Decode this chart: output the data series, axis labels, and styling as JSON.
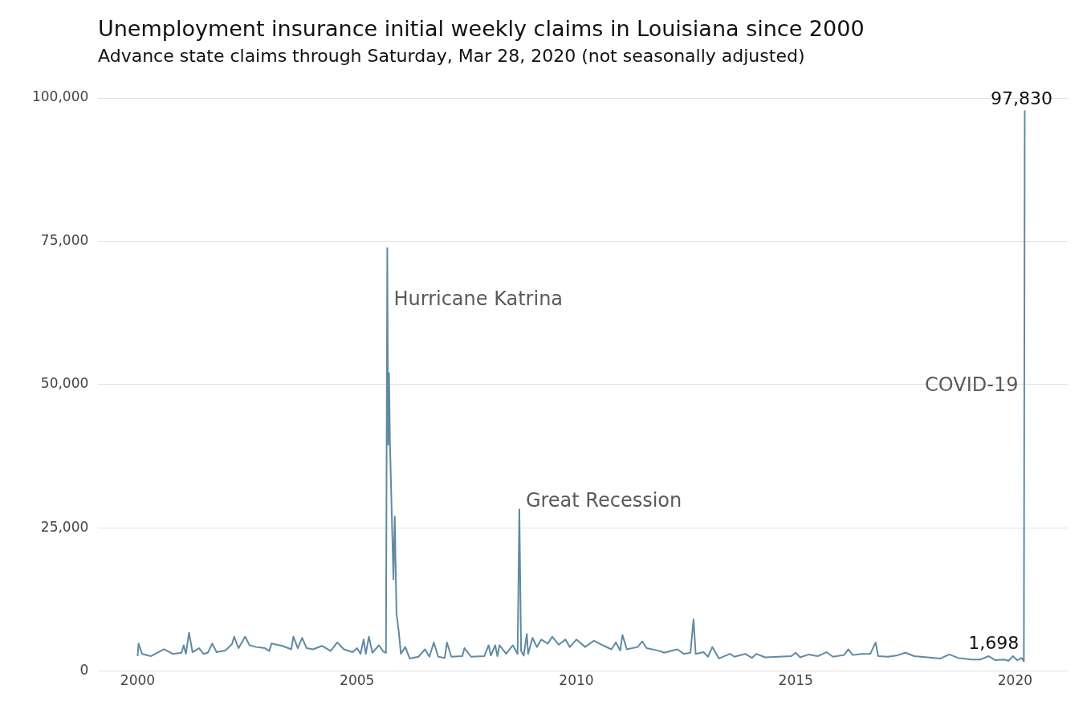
{
  "chart_data": {
    "type": "line",
    "title": "Unemployment insurance initial weekly claims in Louisiana since 2000",
    "subtitle": "Advance state claims through Saturday, Mar 28, 2020 (not seasonally adjusted)",
    "x": [
      2000.0,
      2000.02,
      2000.1,
      2000.3,
      2000.6,
      2000.8,
      2001.0,
      2001.05,
      2001.1,
      2001.17,
      2001.25,
      2001.4,
      2001.5,
      2001.6,
      2001.7,
      2001.8,
      2002.0,
      2002.15,
      2002.2,
      2002.3,
      2002.45,
      2002.55,
      2002.7,
      2002.9,
      2003.0,
      2003.05,
      2003.3,
      2003.5,
      2003.55,
      2003.65,
      2003.75,
      2003.85,
      2004.0,
      2004.2,
      2004.4,
      2004.55,
      2004.7,
      2004.9,
      2005.0,
      2005.08,
      2005.15,
      2005.2,
      2005.27,
      2005.35,
      2005.5,
      2005.6,
      2005.66,
      2005.69,
      2005.71,
      2005.73,
      2005.75,
      2005.8,
      2005.83,
      2005.86,
      2005.9,
      2005.95,
      2006.0,
      2006.1,
      2006.2,
      2006.4,
      2006.55,
      2006.65,
      2006.75,
      2006.85,
      2007.0,
      2007.05,
      2007.15,
      2007.4,
      2007.45,
      2007.6,
      2007.9,
      2008.0,
      2008.05,
      2008.15,
      2008.2,
      2008.25,
      2008.4,
      2008.55,
      2008.66,
      2008.7,
      2008.74,
      2008.8,
      2008.87,
      2008.9,
      2009.0,
      2009.1,
      2009.2,
      2009.35,
      2009.45,
      2009.6,
      2009.75,
      2009.85,
      2010.0,
      2010.2,
      2010.4,
      2010.6,
      2010.8,
      2010.9,
      2011.0,
      2011.05,
      2011.15,
      2011.4,
      2011.5,
      2011.6,
      2011.9,
      2012.0,
      2012.3,
      2012.45,
      2012.6,
      2012.67,
      2012.72,
      2012.9,
      2013.0,
      2013.1,
      2013.25,
      2013.5,
      2013.6,
      2013.85,
      2014.0,
      2014.1,
      2014.3,
      2014.6,
      2014.9,
      2015.0,
      2015.1,
      2015.3,
      2015.5,
      2015.7,
      2015.85,
      2016.1,
      2016.2,
      2016.3,
      2016.5,
      2016.7,
      2016.82,
      2016.88,
      2017.1,
      2017.3,
      2017.5,
      2017.7,
      2018.0,
      2018.3,
      2018.5,
      2018.7,
      2019.0,
      2019.2,
      2019.4,
      2019.55,
      2019.75,
      2019.85,
      2019.95,
      2020.05,
      2020.15,
      2020.2,
      2020.22
    ],
    "series": [
      {
        "color": "#5f8aa3",
        "values": [
          2600,
          4800,
          3000,
          2600,
          3800,
          3000,
          3200,
          4500,
          3000,
          6700,
          3300,
          4000,
          3000,
          3200,
          4800,
          3300,
          3600,
          4700,
          6000,
          4000,
          6000,
          4500,
          4200,
          4000,
          3500,
          4800,
          4400,
          3800,
          6000,
          4000,
          5800,
          4000,
          3800,
          4400,
          3500,
          5000,
          3800,
          3300,
          4000,
          3000,
          5500,
          3000,
          6000,
          3200,
          4500,
          3400,
          3200,
          73800,
          39500,
          52000,
          40000,
          25000,
          16000,
          27000,
          10000,
          7000,
          3000,
          4200,
          2200,
          2500,
          3800,
          2500,
          5000,
          2500,
          2300,
          5000,
          2500,
          2600,
          4000,
          2500,
          2600,
          4500,
          2700,
          4500,
          2600,
          4500,
          3000,
          4500,
          3000,
          28200,
          3500,
          2700,
          6500,
          3000,
          5800,
          4200,
          5500,
          4800,
          6000,
          4600,
          5500,
          4200,
          5500,
          4200,
          5300,
          4500,
          3800,
          5000,
          3600,
          6300,
          3800,
          4200,
          5200,
          4000,
          3500,
          3200,
          3800,
          3000,
          3200,
          9000,
          3000,
          3300,
          2500,
          4200,
          2200,
          3000,
          2500,
          3000,
          2300,
          3000,
          2400,
          2500,
          2600,
          3200,
          2400,
          2900,
          2600,
          3300,
          2500,
          2800,
          3800,
          2800,
          3000,
          3000,
          5000,
          2600,
          2500,
          2700,
          3200,
          2600,
          2400,
          2200,
          2900,
          2300,
          2000,
          2000,
          2600,
          1900,
          2000,
          1800,
          2600,
          1900,
          2300,
          1698,
          97830
        ]
      }
    ],
    "xlim": [
      1999.1,
      2021.2
    ],
    "xticks": [
      2000,
      2005,
      2010,
      2015,
      2020
    ],
    "ylim": [
      0,
      100000
    ],
    "yticks": [
      0,
      {
        "value": 25000,
        "label": "25,000"
      },
      {
        "value": 50000,
        "label": "50,000"
      },
      {
        "value": 75000,
        "label": "75,000"
      },
      {
        "value": 100000,
        "label": "100,000"
      }
    ],
    "grid": "y",
    "legend": false,
    "marker": "none",
    "line_style": "solid",
    "annotations": [
      {
        "text": "Hurricane Katrina",
        "x": 2005.69,
        "y": 65000
      },
      {
        "text": "Great Recession",
        "x": 2008.7,
        "y": 28200
      },
      {
        "text": "COVID-19",
        "x": 2020.22,
        "y": 50000
      },
      {
        "text": "97,830",
        "x": 2020.22,
        "y": 97830
      },
      {
        "text": "1,698",
        "x": 2020.2,
        "y": 1698
      }
    ]
  }
}
